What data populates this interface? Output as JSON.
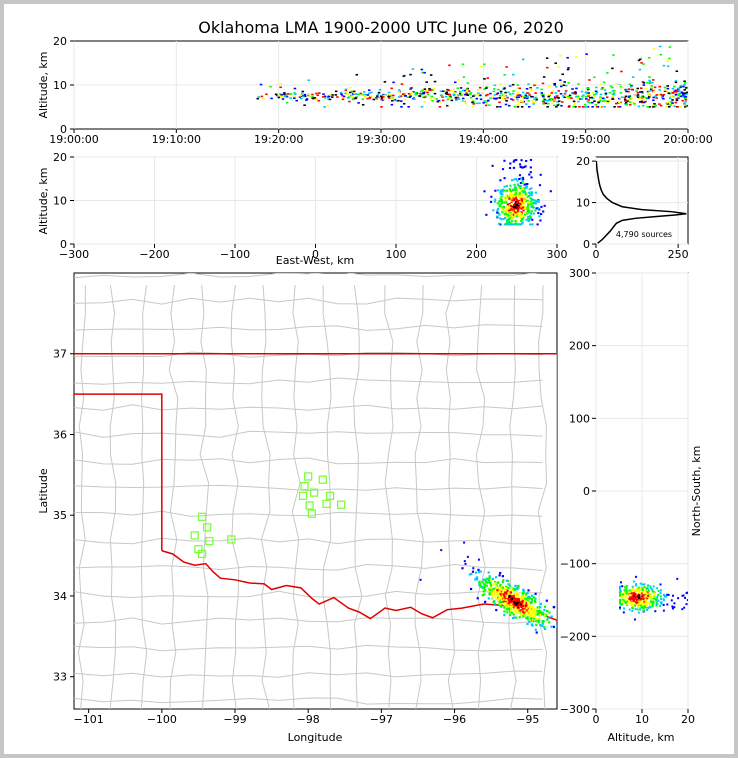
{
  "chart_data": {
    "type": "scatter",
    "title": "Oklahoma LMA 1900-2000 UTC June 06, 2020",
    "source_count_label": "4,790 sources",
    "colors": {
      "frame_bg": "#c6c6c6",
      "state_border": "#e00000",
      "county_line": "#c8c8c8",
      "station": "#7dff3a",
      "grid": "#e8e8e8"
    },
    "palette": [
      "#0000ff",
      "#00c8ff",
      "#00ff00",
      "#ffff00",
      "#ff0000",
      "#000000"
    ],
    "time_panel": {
      "ylabel": "Altitude, km",
      "ylim": [
        0,
        20
      ],
      "yticks": [
        "0",
        "10",
        "20"
      ],
      "xticks": [
        "19:00:00",
        "19:10:00",
        "19:20:00",
        "19:30:00",
        "19:40:00",
        "19:50:00",
        "20:00:00"
      ],
      "xlim_min": [
        0,
        60
      ],
      "activity_start_min": 17.5,
      "activity_end_min": 60,
      "core_alt_km": 7.5
    },
    "ew_panel": {
      "xlabel": "East-West, km",
      "ylabel": "Altitude, km",
      "xlim": [
        -300,
        300
      ],
      "ylim": [
        0,
        20
      ],
      "xticks": [
        "−300",
        "−200",
        "−100",
        "0",
        "100",
        "200",
        "300"
      ],
      "yticks": [
        "0",
        "10",
        "20"
      ],
      "cluster_center_km": 248,
      "cluster_alt_km": 9
    },
    "histogram": {
      "xlim": [
        0,
        280
      ],
      "ylim": [
        0,
        21
      ],
      "xticks": [
        "0",
        "250"
      ],
      "yticks": [
        "0",
        "10",
        "20"
      ],
      "peak_alt_km": 7.3,
      "peak_count": 275,
      "profile": [
        [
          0.2,
          5
        ],
        [
          1,
          18
        ],
        [
          2,
          30
        ],
        [
          3,
          42
        ],
        [
          4,
          52
        ],
        [
          5,
          62
        ],
        [
          5.7,
          80
        ],
        [
          6.2,
          120
        ],
        [
          6.6,
          180
        ],
        [
          7,
          240
        ],
        [
          7.3,
          275
        ],
        [
          7.8,
          230
        ],
        [
          8.3,
          140
        ],
        [
          9,
          80
        ],
        [
          10,
          50
        ],
        [
          11,
          33
        ],
        [
          12,
          22
        ],
        [
          13,
          16
        ],
        [
          14,
          12
        ],
        [
          15,
          9
        ],
        [
          16,
          7
        ],
        [
          17,
          5
        ],
        [
          18,
          3
        ],
        [
          19,
          2
        ],
        [
          20,
          1
        ]
      ]
    },
    "map_panel": {
      "xlabel": "Longitude",
      "ylabel": "Latitude",
      "xlim": [
        -101.2,
        -94.6
      ],
      "ylim": [
        32.6,
        38
      ],
      "xticks": [
        "−101",
        "−100",
        "−99",
        "−98",
        "−97",
        "−96",
        "−95"
      ],
      "yticks": [
        "33",
        "34",
        "35",
        "36",
        "37"
      ],
      "storm_center": [
        -95.2,
        33.95
      ],
      "stations": [
        [
          -99.45,
          34.98
        ],
        [
          -99.38,
          34.85
        ],
        [
          -99.55,
          34.75
        ],
        [
          -99.35,
          34.68
        ],
        [
          -99.5,
          34.58
        ],
        [
          -99.45,
          34.52
        ],
        [
          -99.05,
          34.7
        ],
        [
          -98.0,
          35.48
        ],
        [
          -97.8,
          35.44
        ],
        [
          -98.05,
          35.36
        ],
        [
          -97.92,
          35.28
        ],
        [
          -98.07,
          35.24
        ],
        [
          -97.7,
          35.24
        ],
        [
          -97.75,
          35.14
        ],
        [
          -97.55,
          35.13
        ],
        [
          -97.98,
          35.12
        ],
        [
          -97.95,
          35.02
        ]
      ],
      "red_river": [
        [
          -100.0,
          34.56
        ],
        [
          -99.85,
          34.52
        ],
        [
          -99.7,
          34.42
        ],
        [
          -99.55,
          34.38
        ],
        [
          -99.4,
          34.4
        ],
        [
          -99.3,
          34.3
        ],
        [
          -99.2,
          34.22
        ],
        [
          -99.0,
          34.2
        ],
        [
          -98.8,
          34.16
        ],
        [
          -98.6,
          34.15
        ],
        [
          -98.5,
          34.08
        ],
        [
          -98.3,
          34.13
        ],
        [
          -98.1,
          34.1
        ],
        [
          -97.95,
          33.97
        ],
        [
          -97.85,
          33.9
        ],
        [
          -97.65,
          33.98
        ],
        [
          -97.45,
          33.85
        ],
        [
          -97.3,
          33.8
        ],
        [
          -97.15,
          33.72
        ],
        [
          -96.95,
          33.85
        ],
        [
          -96.8,
          33.82
        ],
        [
          -96.6,
          33.86
        ],
        [
          -96.45,
          33.78
        ],
        [
          -96.3,
          33.73
        ],
        [
          -96.1,
          33.83
        ],
        [
          -95.9,
          33.85
        ],
        [
          -95.6,
          33.9
        ],
        [
          -95.3,
          33.88
        ],
        [
          -95.1,
          33.9
        ],
        [
          -94.9,
          33.82
        ],
        [
          -94.75,
          33.75
        ],
        [
          -94.6,
          33.7
        ]
      ]
    },
    "ns_panel": {
      "xlabel": "Altitude, km",
      "ylabel": "North-South, km",
      "xlim": [
        0,
        20
      ],
      "ylim": [
        -300,
        300
      ],
      "xticks": [
        "0",
        "10",
        "20"
      ],
      "yticks": [
        "−300",
        "−200",
        "−100",
        "0",
        "100",
        "200",
        "300"
      ],
      "cluster_center_km": -145,
      "cluster_alt_km": 9
    }
  }
}
